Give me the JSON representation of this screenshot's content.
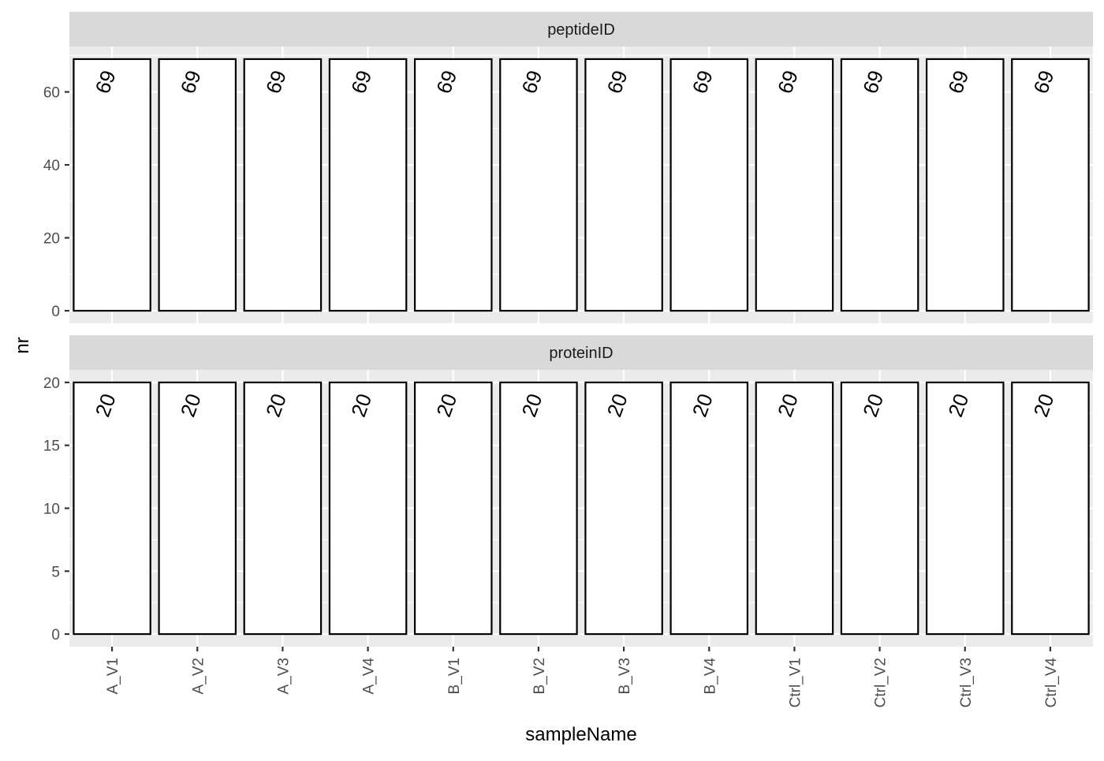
{
  "chart_data": {
    "type": "bar",
    "xlabel": "sampleName",
    "ylabel": "nr",
    "categories": [
      "A_V1",
      "A_V2",
      "A_V3",
      "A_V4",
      "B_V1",
      "B_V2",
      "B_V3",
      "B_V4",
      "Ctrl_V1",
      "Ctrl_V2",
      "Ctrl_V3",
      "Ctrl_V4"
    ],
    "facets": [
      {
        "strip": "peptideID",
        "values": [
          69,
          69,
          69,
          69,
          69,
          69,
          69,
          69,
          69,
          69,
          69,
          69
        ],
        "labels": [
          "69",
          "69",
          "69",
          "69",
          "69",
          "69",
          "69",
          "69",
          "69",
          "69",
          "69",
          "69"
        ],
        "ylim": [
          -3.45,
          72.45
        ],
        "yticks": [
          0,
          20,
          40,
          60
        ],
        "ytick_labels": [
          "0",
          "20",
          "40",
          "60"
        ]
      },
      {
        "strip": "proteinID",
        "values": [
          20,
          20,
          20,
          20,
          20,
          20,
          20,
          20,
          20,
          20,
          20,
          20
        ],
        "labels": [
          "20",
          "20",
          "20",
          "20",
          "20",
          "20",
          "20",
          "20",
          "20",
          "20",
          "20",
          "20"
        ],
        "ylim": [
          -1,
          21
        ],
        "yticks": [
          0,
          5,
          10,
          15,
          20
        ],
        "ytick_labels": [
          "0",
          "5",
          "10",
          "15",
          "20"
        ]
      }
    ],
    "bar_fill": "#ffffff",
    "bar_stroke": "#000000",
    "panel_background": "#ebebeb",
    "strip_background": "#d9d9d9",
    "grid": true,
    "legend": "none"
  }
}
